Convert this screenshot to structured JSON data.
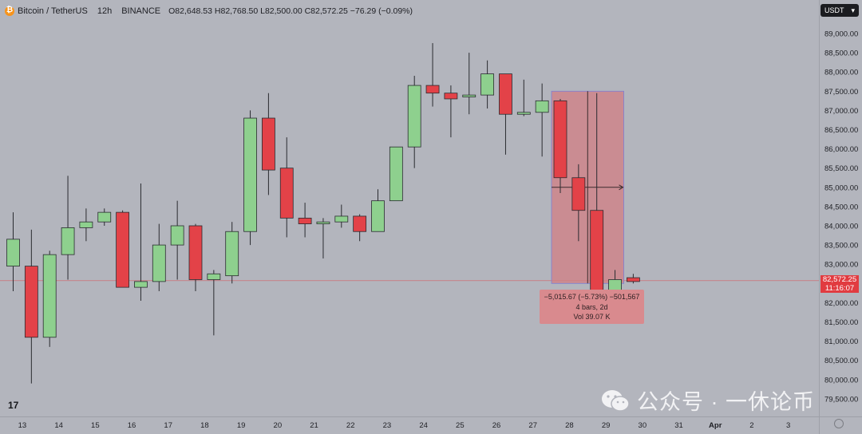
{
  "header": {
    "symbol": "Bitcoin / TetherUS",
    "timeframe": "12h",
    "exchange": "BINANCE",
    "ohlc": "O82,648.53 H82,768.50 L82,500.00 C82,572.25 −76.29 (−0.09%)"
  },
  "currency_button": {
    "label": "USDT",
    "caret": "▾"
  },
  "price_badge": {
    "price": "82,572.25",
    "countdown": "11:16:07"
  },
  "measure": {
    "line1": "−5,015.67 (−5.73%) −501,567",
    "line2": "4 bars, 2d",
    "line3": "Vol 39.07 K"
  },
  "watermark": {
    "text": "公众号 · 一休论币"
  },
  "logo": {
    "text": "17"
  },
  "colors": {
    "background": "#b3b5bd",
    "up": "#8ed08e",
    "down": "#e34248",
    "measure_zone": "#d27f84",
    "price_line": "#e13b40"
  },
  "chart_data": {
    "type": "candlestick",
    "symbol": "BTCUSDT",
    "interval": "12h",
    "ylim": [
      79000,
      89500
    ],
    "y_ticks": [
      79500,
      80000,
      80500,
      81000,
      81500,
      82000,
      82500,
      83000,
      83500,
      84000,
      84500,
      85000,
      85500,
      86000,
      86500,
      87000,
      87500,
      88000,
      88500,
      89000
    ],
    "y_tick_labels": [
      "79,500.00",
      "80,000.00",
      "80,500.00",
      "81,000.00",
      "81,500.00",
      "82,000.00",
      "82,500.00",
      "83,000.00",
      "83,500.00",
      "84,000.00",
      "84,500.00",
      "85,000.00",
      "85,500.00",
      "86,000.00",
      "86,500.00",
      "87,000.00",
      "87,500.00",
      "88,000.00",
      "88,500.00",
      "89,000.00"
    ],
    "x_ticks": [
      {
        "label": "13",
        "bar": 0.5
      },
      {
        "label": "14",
        "bar": 2.5
      },
      {
        "label": "15",
        "bar": 4.5
      },
      {
        "label": "16",
        "bar": 6.5
      },
      {
        "label": "17",
        "bar": 8.5
      },
      {
        "label": "18",
        "bar": 10.5
      },
      {
        "label": "19",
        "bar": 12.5
      },
      {
        "label": "20",
        "bar": 14.5
      },
      {
        "label": "21",
        "bar": 16.5
      },
      {
        "label": "22",
        "bar": 18.5
      },
      {
        "label": "23",
        "bar": 20.5
      },
      {
        "label": "24",
        "bar": 22.5
      },
      {
        "label": "25",
        "bar": 24.5
      },
      {
        "label": "26",
        "bar": 26.5
      },
      {
        "label": "27",
        "bar": 28.5
      },
      {
        "label": "28",
        "bar": 30.5
      },
      {
        "label": "29",
        "bar": 32.5
      },
      {
        "label": "30",
        "bar": 34.5
      },
      {
        "label": "31",
        "bar": 36.5
      },
      {
        "label": "Apr",
        "bar": 38.5
      },
      {
        "label": "2",
        "bar": 40.5
      },
      {
        "label": "3",
        "bar": 42.5
      }
    ],
    "candles": [
      {
        "o": 82950,
        "h": 84350,
        "l": 82300,
        "c": 83650
      },
      {
        "o": 82950,
        "h": 83900,
        "l": 79900,
        "c": 81100
      },
      {
        "o": 81100,
        "h": 83350,
        "l": 80850,
        "c": 83250
      },
      {
        "o": 83250,
        "h": 85300,
        "l": 82600,
        "c": 83950
      },
      {
        "o": 83950,
        "h": 84450,
        "l": 83600,
        "c": 84100
      },
      {
        "o": 84100,
        "h": 84450,
        "l": 84000,
        "c": 84350
      },
      {
        "o": 84350,
        "h": 84400,
        "l": 82400,
        "c": 82400
      },
      {
        "o": 82400,
        "h": 85100,
        "l": 82050,
        "c": 82550
      },
      {
        "o": 82550,
        "h": 84050,
        "l": 82300,
        "c": 83500
      },
      {
        "o": 83500,
        "h": 84650,
        "l": 82600,
        "c": 84000
      },
      {
        "o": 84000,
        "h": 84050,
        "l": 82300,
        "c": 82600
      },
      {
        "o": 82600,
        "h": 82850,
        "l": 81150,
        "c": 82750
      },
      {
        "o": 82700,
        "h": 84100,
        "l": 82500,
        "c": 83850
      },
      {
        "o": 83850,
        "h": 87000,
        "l": 83500,
        "c": 86800
      },
      {
        "o": 86800,
        "h": 87450,
        "l": 84800,
        "c": 85450
      },
      {
        "o": 85500,
        "h": 86300,
        "l": 83700,
        "c": 84200
      },
      {
        "o": 84200,
        "h": 84600,
        "l": 83700,
        "c": 84050
      },
      {
        "o": 84050,
        "h": 84200,
        "l": 83150,
        "c": 84100
      },
      {
        "o": 84100,
        "h": 84550,
        "l": 83950,
        "c": 84250
      },
      {
        "o": 84250,
        "h": 84300,
        "l": 83600,
        "c": 83850
      },
      {
        "o": 83850,
        "h": 84950,
        "l": 83850,
        "c": 84650
      },
      {
        "o": 84650,
        "h": 86050,
        "l": 84650,
        "c": 86050
      },
      {
        "o": 86050,
        "h": 87900,
        "l": 85500,
        "c": 87650
      },
      {
        "o": 87650,
        "h": 88750,
        "l": 87100,
        "c": 87450
      },
      {
        "o": 87450,
        "h": 87650,
        "l": 86300,
        "c": 87300
      },
      {
        "o": 87350,
        "h": 88500,
        "l": 86900,
        "c": 87400
      },
      {
        "o": 87400,
        "h": 88300,
        "l": 87050,
        "c": 87950
      },
      {
        "o": 87950,
        "h": 87950,
        "l": 85850,
        "c": 86900
      },
      {
        "o": 86900,
        "h": 87800,
        "l": 86850,
        "c": 86950
      },
      {
        "o": 86950,
        "h": 87700,
        "l": 85800,
        "c": 87250
      },
      {
        "o": 87250,
        "h": 87300,
        "l": 84850,
        "c": 85250
      },
      {
        "o": 85250,
        "h": 85600,
        "l": 83600,
        "c": 84400
      },
      {
        "o": 84400,
        "h": 87450,
        "l": 82300,
        "c": 82300
      },
      {
        "o": 82300,
        "h": 82850,
        "l": 82250,
        "c": 82600
      },
      {
        "o": 82650,
        "h": 82750,
        "l": 82500,
        "c": 82550
      }
    ],
    "current_price": 82572.25,
    "measure_range": {
      "start_bar": 30,
      "end_bar": 33,
      "high": 87500,
      "low": 82500,
      "change": "−5,015.67 (−5.73%)"
    }
  }
}
